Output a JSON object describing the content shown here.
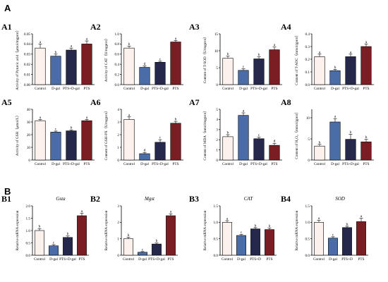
{
  "sections": {
    "a": "A",
    "b": "B"
  },
  "colors": {
    "Control": "#fdf1ee",
    "D-gal": "#4a6da7",
    "PTS+D-gal": "#25284a",
    "PTS+D": "#25284a",
    "PTS": "#7b1e24",
    "axis": "#000000"
  },
  "chart_data": [
    {
      "type": "bar",
      "panel": "A1",
      "title": "",
      "ylabel": "Activity of Pyruvic acid（μmol/mgprot）",
      "categories": [
        "Control",
        "D-gal",
        "PTS+D-gal",
        "PTS"
      ],
      "values": [
        0.036,
        0.028,
        0.034,
        0.04
      ],
      "errors": [
        0.004,
        0.002,
        0.002,
        0.003
      ],
      "letters": [
        "a",
        "b",
        "a",
        "a"
      ],
      "ylim": [
        0,
        0.05
      ],
      "yticks": [
        "0.00",
        "0.01",
        "0.02",
        "0.03",
        "0.04",
        "0.05"
      ]
    },
    {
      "type": "bar",
      "panel": "A2",
      "title": "",
      "ylabel": "Activity of CAT（U/mgprot）",
      "categories": [
        "Control",
        "D-gal",
        "PTS+D-gal",
        "PTS"
      ],
      "values": [
        0.72,
        0.34,
        0.44,
        0.84
      ],
      "errors": [
        0.04,
        0.03,
        0.02,
        0.03
      ],
      "letters": [
        "b",
        "d",
        "c",
        "a"
      ],
      "ylim": [
        0,
        1.0
      ],
      "yticks": [
        "0.0",
        "0.2",
        "0.4",
        "0.6",
        "0.8",
        "1.0"
      ]
    },
    {
      "type": "bar",
      "panel": "A3",
      "title": "",
      "ylabel": "Content of T-SOD（U/mgprot）",
      "categories": [
        "Control",
        "D-gal",
        "PTS+D-gal",
        "PTS"
      ],
      "values": [
        7.8,
        4.2,
        7.6,
        10.3
      ],
      "errors": [
        0.6,
        0.5,
        0.6,
        0.8
      ],
      "letters": [
        "b",
        "c",
        "b",
        "a"
      ],
      "ylim": [
        0,
        15
      ],
      "yticks": [
        "0",
        "5",
        "10",
        "15"
      ]
    },
    {
      "type": "bar",
      "panel": "A4",
      "title": "",
      "ylabel": "Content of T-AOC（mmol/gprot）",
      "categories": [
        "Control",
        "D-gal",
        "PTS+D-gal",
        "PTS"
      ],
      "values": [
        0.22,
        0.11,
        0.22,
        0.3
      ],
      "errors": [
        0.02,
        0.01,
        0.02,
        0.02
      ],
      "letters": [
        "a",
        "b",
        "a",
        "a"
      ],
      "ylim": [
        0,
        0.4
      ],
      "yticks": [
        "0.0",
        "0.1",
        "0.2",
        "0.3",
        "0.4"
      ]
    },
    {
      "type": "bar",
      "panel": "A5",
      "title": "",
      "ylabel": "Activity of GSH（μmol/L）",
      "categories": [
        "Control",
        "D-gal",
        "PTS+D-gal",
        "PTS"
      ],
      "values": [
        31,
        22,
        23,
        31
      ],
      "errors": [
        1,
        0.8,
        0.8,
        1
      ],
      "letters": [
        "a",
        "c",
        "b",
        "a"
      ],
      "ylim": [
        0,
        40
      ],
      "yticks": [
        "0",
        "10",
        "20",
        "30",
        "40"
      ]
    },
    {
      "type": "bar",
      "panel": "A6",
      "title": "",
      "ylabel": "Content of GSH-PX（U/mgprot）",
      "categories": [
        "Control",
        "D-gal",
        "PTS+D-gal",
        "PTS"
      ],
      "values": [
        3.2,
        0.5,
        1.4,
        2.9
      ],
      "errors": [
        0.2,
        0.1,
        0.2,
        0.15
      ],
      "letters": [
        "a",
        "d",
        "c",
        "b"
      ],
      "ylim": [
        0,
        4
      ],
      "yticks": [
        "0",
        "1",
        "2",
        "3",
        "4"
      ]
    },
    {
      "type": "bar",
      "panel": "A7",
      "title": "",
      "ylabel": "Content of MDA（nmol/mgprot）",
      "categories": [
        "Control",
        "D-gal",
        "PTS+D-gal",
        "PTS"
      ],
      "values": [
        2.3,
        4.4,
        2.1,
        1.45
      ],
      "errors": [
        0.2,
        0.25,
        0.15,
        0.2
      ],
      "letters": [
        "b",
        "a",
        "c",
        "d"
      ],
      "ylim": [
        0,
        5
      ],
      "yticks": [
        "0",
        "1",
        "2",
        "3",
        "4",
        "5"
      ]
    },
    {
      "type": "bar",
      "panel": "A8",
      "title": "",
      "ylabel": "Content of H₂O₂（mmol/gprot）",
      "categories": [
        "Control",
        "D-gal",
        "PTS+D-gal",
        "PTS"
      ],
      "values": [
        3.3,
        9.0,
        4.9,
        4.3
      ],
      "errors": [
        0.4,
        0.8,
        1.2,
        0.6
      ],
      "letters": [
        "b",
        "a",
        "b",
        "b"
      ],
      "ylim": [
        0,
        12
      ],
      "yticks": [
        "0",
        "5",
        "10"
      ]
    },
    {
      "type": "bar",
      "panel": "B1",
      "title": "Gsta",
      "ylabel": "Relative mRNA expression",
      "categories": [
        "Control",
        "D-gal",
        "PTS+D-gal",
        "PTS"
      ],
      "values": [
        1.0,
        0.38,
        0.72,
        1.6
      ],
      "errors": [
        0.08,
        0.05,
        0.06,
        0.1
      ],
      "letters": [
        "b",
        "c",
        "b",
        "a"
      ],
      "ylim": [
        0,
        2.0
      ],
      "yticks": [
        "0.0",
        "0.5",
        "1.0",
        "1.5",
        "2.0"
      ]
    },
    {
      "type": "bar",
      "panel": "B2",
      "title": "Mgst",
      "ylabel": "Relative mRNA expression",
      "categories": [
        "Control",
        "D-gal",
        "PTS+D-gal",
        "PTS"
      ],
      "values": [
        1.0,
        0.18,
        0.68,
        2.4
      ],
      "errors": [
        0.1,
        0.04,
        0.06,
        0.12
      ],
      "letters": [
        "b",
        "c",
        "b",
        "a"
      ],
      "ylim": [
        0,
        3
      ],
      "yticks": [
        "0",
        "1",
        "2",
        "3"
      ]
    },
    {
      "type": "bar",
      "panel": "B3",
      "title": "CAT",
      "ylabel": "Relative mRNA expression",
      "categories": [
        "Control",
        "D-gal",
        "PTS+D",
        "PTS"
      ],
      "values": [
        1.0,
        0.6,
        0.8,
        0.78
      ],
      "errors": [
        0.05,
        0.03,
        0.04,
        0.05
      ],
      "letters": [
        "a",
        "c",
        "b",
        "b"
      ],
      "ylim": [
        0,
        1.5
      ],
      "yticks": [
        "0.0",
        "0.5",
        "1.0",
        "1.5"
      ]
    },
    {
      "type": "bar",
      "panel": "B4",
      "title": "SOD",
      "ylabel": "Relative mRNA expression",
      "categories": [
        "Control",
        "D-gal",
        "PTS+D",
        "PTS"
      ],
      "values": [
        1.0,
        0.52,
        0.84,
        1.02
      ],
      "errors": [
        0.06,
        0.04,
        0.04,
        0.1
      ],
      "letters": [
        "a",
        "c",
        "b",
        "a"
      ],
      "ylim": [
        0,
        1.5
      ],
      "yticks": [
        "0.0",
        "0.5",
        "1.0",
        "1.5"
      ]
    }
  ]
}
